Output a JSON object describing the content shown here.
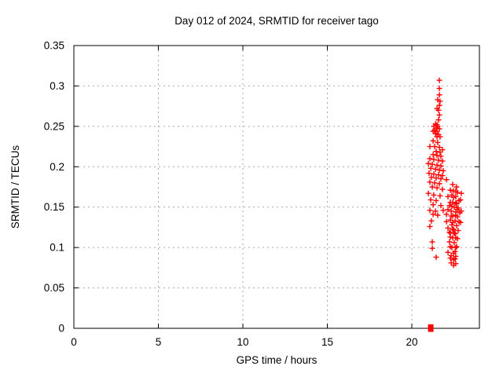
{
  "chart_data": {
    "type": "scatter",
    "title": "Day 012 of 2024, SRMTID for receiver tago",
    "xlabel": "GPS time / hours",
    "ylabel": "SRMTID / TECUs",
    "xlim": [
      0,
      24
    ],
    "ylim": [
      0,
      0.35
    ],
    "xtick_values": [
      0,
      5,
      10,
      15,
      20
    ],
    "xtick_labels": [
      "0",
      "5",
      "10",
      "15",
      "20"
    ],
    "ytick_values": [
      0,
      0.05,
      0.1,
      0.15,
      0.2,
      0.25,
      0.3,
      0.35
    ],
    "ytick_labels": [
      "0",
      "0.05",
      "0.1",
      "0.15",
      "0.2",
      "0.25",
      "0.3",
      "0.35"
    ],
    "grid": "dashed",
    "legend": "none",
    "marker": "plus",
    "marker_color": "#ff0000",
    "grid_color": "#a9a9a9",
    "axis_color": "#000000",
    "background_color": "#ffffff",
    "series": [
      {
        "name": "SRMTID",
        "points": [
          [
            21.63,
            0.307
          ],
          [
            21.63,
            0.297
          ],
          [
            21.63,
            0.289
          ],
          [
            21.53,
            0.283
          ],
          [
            21.67,
            0.281
          ],
          [
            21.63,
            0.276
          ],
          [
            21.49,
            0.272
          ],
          [
            21.58,
            0.27
          ],
          [
            21.63,
            0.264
          ],
          [
            21.58,
            0.258
          ],
          [
            21.4,
            0.253
          ],
          [
            21.49,
            0.252
          ],
          [
            21.3,
            0.25
          ],
          [
            21.53,
            0.25
          ],
          [
            21.44,
            0.248
          ],
          [
            21.63,
            0.247
          ],
          [
            21.35,
            0.245
          ],
          [
            21.26,
            0.244
          ],
          [
            21.49,
            0.244
          ],
          [
            21.4,
            0.241
          ],
          [
            21.58,
            0.24
          ],
          [
            21.49,
            0.237
          ],
          [
            21.67,
            0.237
          ],
          [
            21.26,
            0.232
          ],
          [
            21.53,
            0.23
          ],
          [
            21.07,
            0.225
          ],
          [
            21.35,
            0.225
          ],
          [
            21.63,
            0.224
          ],
          [
            21.81,
            0.221
          ],
          [
            21.44,
            0.219
          ],
          [
            21.67,
            0.218
          ],
          [
            21.26,
            0.215
          ],
          [
            21.49,
            0.214
          ],
          [
            21.72,
            0.213
          ],
          [
            21.07,
            0.21
          ],
          [
            21.3,
            0.209
          ],
          [
            21.58,
            0.208
          ],
          [
            21.81,
            0.207
          ],
          [
            20.98,
            0.204
          ],
          [
            21.21,
            0.203
          ],
          [
            21.49,
            0.202
          ],
          [
            21.72,
            0.201
          ],
          [
            21.12,
            0.198
          ],
          [
            21.4,
            0.197
          ],
          [
            21.63,
            0.196
          ],
          [
            21.86,
            0.195
          ],
          [
            21.02,
            0.192
          ],
          [
            21.3,
            0.191
          ],
          [
            21.58,
            0.19
          ],
          [
            21.81,
            0.189
          ],
          [
            21.16,
            0.187
          ],
          [
            21.44,
            0.186
          ],
          [
            21.72,
            0.185
          ],
          [
            22.05,
            0.184
          ],
          [
            21.07,
            0.181
          ],
          [
            21.35,
            0.18
          ],
          [
            21.63,
            0.179
          ],
          [
            22.42,
            0.178
          ],
          [
            21.21,
            0.175
          ],
          [
            21.49,
            0.174
          ],
          [
            21.81,
            0.172
          ],
          [
            22.28,
            0.171
          ],
          [
            22.6,
            0.17
          ],
          [
            20.98,
            0.167
          ],
          [
            21.3,
            0.165
          ],
          [
            21.67,
            0.164
          ],
          [
            22.14,
            0.163
          ],
          [
            22.47,
            0.162
          ],
          [
            21.12,
            0.159
          ],
          [
            21.44,
            0.158
          ],
          [
            22.28,
            0.156
          ],
          [
            22.6,
            0.155
          ],
          [
            21.26,
            0.153
          ],
          [
            21.72,
            0.152
          ],
          [
            22.37,
            0.151
          ],
          [
            22.65,
            0.175
          ],
          [
            22.93,
            0.167
          ],
          [
            22.47,
            0.17
          ],
          [
            22.7,
            0.168
          ],
          [
            22.37,
            0.165
          ],
          [
            22.6,
            0.163
          ],
          [
            22.88,
            0.159
          ],
          [
            22.79,
            0.158
          ],
          [
            22.42,
            0.156
          ],
          [
            22.65,
            0.154
          ],
          [
            22.23,
            0.152
          ],
          [
            22.51,
            0.15
          ],
          [
            22.74,
            0.149
          ],
          [
            22.33,
            0.145
          ],
          [
            22.93,
            0.145
          ],
          [
            22.6,
            0.144
          ],
          [
            22.84,
            0.143
          ],
          [
            22.42,
            0.139
          ],
          [
            22.7,
            0.138
          ],
          [
            22.28,
            0.134
          ],
          [
            22.56,
            0.133
          ],
          [
            22.79,
            0.132
          ],
          [
            22.88,
            0.131
          ],
          [
            22.37,
            0.128
          ],
          [
            22.65,
            0.127
          ],
          [
            22.47,
            0.122
          ],
          [
            22.74,
            0.121
          ],
          [
            22.28,
            0.118
          ],
          [
            22.56,
            0.117
          ],
          [
            22.42,
            0.112
          ],
          [
            22.7,
            0.111
          ],
          [
            22.23,
            0.107
          ],
          [
            22.51,
            0.106
          ],
          [
            22.65,
            0.101
          ],
          [
            22.37,
            0.1
          ],
          [
            22.56,
            0.095
          ],
          [
            22.33,
            0.09
          ],
          [
            22.6,
            0.089
          ],
          [
            22.47,
            0.085
          ],
          [
            21.07,
            0.146
          ],
          [
            21.4,
            0.145
          ],
          [
            21.86,
            0.146
          ],
          [
            22.14,
            0.147
          ],
          [
            22.7,
            0.147
          ],
          [
            21.26,
            0.141
          ],
          [
            21.53,
            0.14
          ],
          [
            22.05,
            0.141
          ],
          [
            22.33,
            0.139
          ],
          [
            22.6,
            0.14
          ],
          [
            21.16,
            0.133
          ],
          [
            22.05,
            0.132
          ],
          [
            22.42,
            0.131
          ],
          [
            21.07,
            0.126
          ],
          [
            22.14,
            0.124
          ],
          [
            22.42,
            0.123
          ],
          [
            22.23,
            0.119
          ],
          [
            22.51,
            0.118
          ],
          [
            22.28,
            0.113
          ],
          [
            22.6,
            0.112
          ],
          [
            21.21,
            0.107
          ],
          [
            22.28,
            0.101
          ],
          [
            22.6,
            0.1
          ],
          [
            21.21,
            0.099
          ],
          [
            22.14,
            0.094
          ],
          [
            22.47,
            0.093
          ],
          [
            21.44,
            0.088
          ],
          [
            22.28,
            0.087
          ],
          [
            22.56,
            0.086
          ],
          [
            22.33,
            0.081
          ],
          [
            22.6,
            0.08
          ],
          [
            22.47,
            0.078
          ]
        ]
      }
    ],
    "zero_marker": {
      "type": "filled-square",
      "point": [
        21.12,
        0
      ]
    }
  }
}
